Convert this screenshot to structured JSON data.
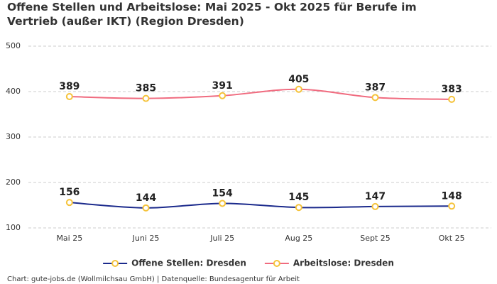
{
  "chart_data": {
    "type": "line",
    "title": "Offene Stellen und Arbeitslose: Mai 2025 - Okt 2025 für Berufe im Vertrieb (außer IKT) (Region Dresden)",
    "categories": [
      "Mai 25",
      "Juni 25",
      "Juli 25",
      "Aug 25",
      "Sept 25",
      "Okt 25"
    ],
    "series": [
      {
        "name": "Offene Stellen: Dresden",
        "color": "#1b2a8c",
        "values": [
          156,
          144,
          154,
          145,
          147,
          148
        ]
      },
      {
        "name": "Arbeitslose: Dresden",
        "color": "#f06b7f",
        "values": [
          389,
          385,
          391,
          405,
          387,
          383
        ]
      }
    ],
    "marker_color": "#f5c33b",
    "ylim": [
      100,
      500
    ],
    "yticks": [
      100,
      200,
      300,
      400,
      500
    ],
    "grid": true,
    "legend": "bottom",
    "source": "Chart: gute-jobs.de (Wollmilchsau GmbH) | Datenquelle: Bundesagentur für Arbeit"
  }
}
